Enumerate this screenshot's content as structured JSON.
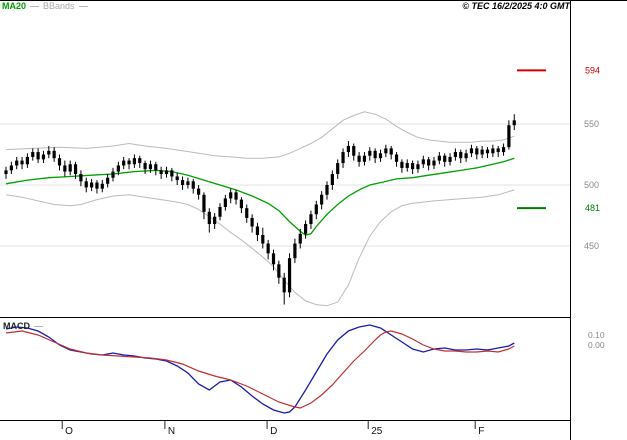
{
  "legend": {
    "ma20": "MA20",
    "bbands": "BBands"
  },
  "header": {
    "copyright": "© TEC 16/2/2025 4:0 GMT"
  },
  "macd_pane": {
    "label": "MACD",
    "axis_labels": [
      {
        "text": "0.10",
        "value": 0.1
      },
      {
        "text": "0.00",
        "value": 0.0
      }
    ]
  },
  "price_axis": {
    "ticks": [
      {
        "label": "550",
        "value": 550
      },
      {
        "label": "500",
        "value": 500
      },
      {
        "label": "450",
        "value": 450
      }
    ],
    "resistance": {
      "label": "594",
      "value": 594
    },
    "support": {
      "label": "481",
      "value": 481
    }
  },
  "x_axis": {
    "labels": [
      {
        "text": "O",
        "index": 10.5
      },
      {
        "text": "N",
        "index": 29.7
      },
      {
        "text": "D",
        "index": 48.8
      },
      {
        "text": "25",
        "index": 67.7
      },
      {
        "text": "F",
        "index": 87.7
      }
    ]
  },
  "colors": {
    "ma20": "#00a000",
    "bbands": "#bbbbbb",
    "candle": "#000000",
    "macd_line": "#1a1aae",
    "signal_line": "#c03030",
    "resistance": "#cc0000",
    "support": "#007d00",
    "grid": "#e3e3e3",
    "axis_text": "#8a8a8a",
    "month_text": "#111111"
  },
  "chart_data": {
    "type": "candlestick",
    "title": "",
    "indicators": [
      "MA20",
      "Bollinger Bands",
      "MACD"
    ],
    "y_axis": {
      "ticks": [
        550,
        500,
        450
      ],
      "ylim": [
        395,
        600
      ],
      "resistance_level": 594,
      "support_level": 481
    },
    "x_axis_months": [
      "O",
      "N",
      "D",
      "25",
      "F"
    ],
    "series": {
      "ohlc": [
        [
          509,
          515,
          505,
          512
        ],
        [
          512,
          519,
          509,
          516
        ],
        [
          516,
          523,
          513,
          520
        ],
        [
          520,
          523,
          513,
          517
        ],
        [
          517,
          526,
          514,
          523
        ],
        [
          523,
          530,
          520,
          527
        ],
        [
          527,
          530,
          518,
          521
        ],
        [
          521,
          528,
          518,
          525
        ],
        [
          525,
          532,
          522,
          528
        ],
        [
          528,
          531,
          519,
          522
        ],
        [
          522,
          525,
          512,
          516
        ],
        [
          516,
          520,
          507,
          511
        ],
        [
          511,
          520,
          508,
          517
        ],
        [
          517,
          519,
          505,
          509
        ],
        [
          509,
          512,
          499,
          503
        ],
        [
          503,
          506,
          494,
          498
        ],
        [
          498,
          505,
          495,
          502
        ],
        [
          502,
          504,
          493,
          497
        ],
        [
          497,
          504,
          494,
          501
        ],
        [
          501,
          509,
          498,
          506
        ],
        [
          506,
          514,
          503,
          511
        ],
        [
          511,
          519,
          508,
          516
        ],
        [
          516,
          523,
          513,
          520
        ],
        [
          520,
          522,
          513,
          517
        ],
        [
          517,
          525,
          514,
          522
        ],
        [
          522,
          524,
          514,
          518
        ],
        [
          518,
          520,
          509,
          513
        ],
        [
          513,
          520,
          510,
          517
        ],
        [
          517,
          519,
          508,
          512
        ],
        [
          512,
          515,
          505,
          509
        ],
        [
          509,
          515,
          506,
          512
        ],
        [
          512,
          514,
          503,
          507
        ],
        [
          507,
          510,
          500,
          504
        ],
        [
          504,
          507,
          496,
          500
        ],
        [
          500,
          506,
          497,
          503
        ],
        [
          503,
          505,
          493,
          497
        ],
        [
          497,
          500,
          488,
          492
        ],
        [
          492,
          494,
          472,
          478
        ],
        [
          478,
          481,
          461,
          468
        ],
        [
          468,
          477,
          464,
          474
        ],
        [
          474,
          485,
          471,
          482
        ],
        [
          482,
          492,
          479,
          489
        ],
        [
          489,
          497,
          485,
          494
        ],
        [
          494,
          496,
          484,
          488
        ],
        [
          488,
          490,
          477,
          481
        ],
        [
          481,
          484,
          469,
          473
        ],
        [
          473,
          476,
          461,
          466
        ],
        [
          466,
          469,
          454,
          459
        ],
        [
          459,
          465,
          448,
          452
        ],
        [
          452,
          455,
          439,
          444
        ],
        [
          444,
          447,
          430,
          435
        ],
        [
          435,
          438,
          419,
          424
        ],
        [
          424,
          428,
          402,
          412
        ],
        [
          412,
          444,
          408,
          440
        ],
        [
          440,
          456,
          436,
          452
        ],
        [
          452,
          464,
          448,
          460
        ],
        [
          460,
          471,
          456,
          468
        ],
        [
          468,
          479,
          464,
          476
        ],
        [
          476,
          487,
          472,
          484
        ],
        [
          484,
          495,
          480,
          492
        ],
        [
          492,
          503,
          488,
          500
        ],
        [
          500,
          512,
          496,
          509
        ],
        [
          509,
          521,
          505,
          518
        ],
        [
          518,
          530,
          514,
          527
        ],
        [
          527,
          536,
          523,
          532
        ],
        [
          532,
          534,
          520,
          524
        ],
        [
          524,
          527,
          515,
          519
        ],
        [
          519,
          527,
          516,
          524
        ],
        [
          524,
          531,
          520,
          528
        ],
        [
          528,
          530,
          518,
          522
        ],
        [
          522,
          529,
          519,
          526
        ],
        [
          526,
          533,
          523,
          530
        ],
        [
          530,
          532,
          521,
          525
        ],
        [
          525,
          527,
          515,
          519
        ],
        [
          519,
          521,
          510,
          514
        ],
        [
          514,
          521,
          511,
          518
        ],
        [
          518,
          520,
          509,
          513
        ],
        [
          513,
          520,
          510,
          517
        ],
        [
          517,
          524,
          514,
          521
        ],
        [
          521,
          523,
          512,
          516
        ],
        [
          516,
          523,
          513,
          520
        ],
        [
          520,
          527,
          517,
          524
        ],
        [
          524,
          526,
          515,
          519
        ],
        [
          519,
          526,
          516,
          523
        ],
        [
          523,
          530,
          520,
          527
        ],
        [
          527,
          529,
          518,
          522
        ],
        [
          522,
          529,
          519,
          526
        ],
        [
          526,
          533,
          523,
          530
        ],
        [
          530,
          532,
          521,
          525
        ],
        [
          525,
          532,
          522,
          529
        ],
        [
          529,
          531,
          522,
          526
        ],
        [
          526,
          533,
          523,
          530
        ],
        [
          530,
          532,
          523,
          527
        ],
        [
          527,
          534,
          524,
          531
        ],
        [
          531,
          553,
          529,
          549
        ],
        [
          549,
          558,
          545,
          553
        ]
      ],
      "ma20": [
        [
          0,
          501
        ],
        [
          4,
          504
        ],
        [
          8,
          506
        ],
        [
          12,
          507
        ],
        [
          16,
          508
        ],
        [
          20,
          509
        ],
        [
          24,
          511
        ],
        [
          28,
          512
        ],
        [
          31,
          511
        ],
        [
          34,
          508
        ],
        [
          37,
          504
        ],
        [
          40,
          500
        ],
        [
          43,
          496
        ],
        [
          46,
          491
        ],
        [
          49,
          485
        ],
        [
          51,
          479
        ],
        [
          53,
          470
        ],
        [
          55,
          462
        ],
        [
          56,
          459
        ],
        [
          57,
          460
        ],
        [
          58,
          466
        ],
        [
          60,
          476
        ],
        [
          62,
          484
        ],
        [
          64,
          491
        ],
        [
          66,
          496
        ],
        [
          68,
          500
        ],
        [
          70,
          502
        ],
        [
          73,
          505
        ],
        [
          76,
          506
        ],
        [
          79,
          508
        ],
        [
          82,
          510
        ],
        [
          85,
          512
        ],
        [
          88,
          514
        ],
        [
          91,
          517
        ],
        [
          93,
          519
        ],
        [
          95,
          522
        ]
      ],
      "bollinger_upper": [
        [
          0,
          529
        ],
        [
          5,
          530
        ],
        [
          10,
          531
        ],
        [
          15,
          530
        ],
        [
          20,
          532
        ],
        [
          23,
          534
        ],
        [
          26,
          532
        ],
        [
          30,
          530
        ],
        [
          33,
          528
        ],
        [
          36,
          526
        ],
        [
          39,
          524
        ],
        [
          42,
          523
        ],
        [
          45,
          522
        ],
        [
          48,
          522
        ],
        [
          51,
          523
        ],
        [
          53,
          526
        ],
        [
          55,
          530
        ],
        [
          57,
          534
        ],
        [
          59,
          539
        ],
        [
          61,
          546
        ],
        [
          63,
          553
        ],
        [
          65,
          557
        ],
        [
          67,
          560
        ],
        [
          69,
          558
        ],
        [
          71,
          554
        ],
        [
          73,
          548
        ],
        [
          75,
          543
        ],
        [
          77,
          539
        ],
        [
          79,
          537
        ],
        [
          81,
          536
        ],
        [
          83,
          535
        ],
        [
          85,
          535
        ],
        [
          87,
          535
        ],
        [
          89,
          536
        ],
        [
          91,
          536
        ],
        [
          93,
          537
        ],
        [
          95,
          540
        ]
      ],
      "bollinger_lower": [
        [
          0,
          492
        ],
        [
          3,
          490
        ],
        [
          6,
          487
        ],
        [
          9,
          484
        ],
        [
          12,
          483
        ],
        [
          14,
          484
        ],
        [
          17,
          488
        ],
        [
          20,
          491
        ],
        [
          23,
          492
        ],
        [
          26,
          490
        ],
        [
          29,
          488
        ],
        [
          32,
          486
        ],
        [
          34,
          484
        ],
        [
          36,
          480
        ],
        [
          38,
          474
        ],
        [
          40,
          468
        ],
        [
          42,
          461
        ],
        [
          44,
          455
        ],
        [
          46,
          448
        ],
        [
          48,
          441
        ],
        [
          50,
          433
        ],
        [
          52,
          422
        ],
        [
          54,
          412
        ],
        [
          56,
          405
        ],
        [
          58,
          402
        ],
        [
          60,
          401
        ],
        [
          62,
          404
        ],
        [
          64,
          418
        ],
        [
          66,
          440
        ],
        [
          68,
          458
        ],
        [
          70,
          470
        ],
        [
          72,
          478
        ],
        [
          74,
          483
        ],
        [
          76,
          485
        ],
        [
          78,
          486
        ],
        [
          80,
          487
        ],
        [
          83,
          488
        ],
        [
          86,
          489
        ],
        [
          89,
          490
        ],
        [
          92,
          492
        ],
        [
          95,
          496
        ]
      ]
    },
    "macd": {
      "axis_ticks": [
        0.1,
        0.0
      ],
      "macd_line": [
        [
          0,
          0.16
        ],
        [
          2,
          0.18
        ],
        [
          4,
          0.17
        ],
        [
          6,
          0.14
        ],
        [
          8,
          0.08
        ],
        [
          10,
          0.0
        ],
        [
          12,
          -0.05
        ],
        [
          14,
          -0.07
        ],
        [
          16,
          -0.09
        ],
        [
          18,
          -0.1
        ],
        [
          20,
          -0.08
        ],
        [
          22,
          -0.1
        ],
        [
          24,
          -0.11
        ],
        [
          26,
          -0.13
        ],
        [
          28,
          -0.14
        ],
        [
          30,
          -0.16
        ],
        [
          32,
          -0.21
        ],
        [
          34,
          -0.28
        ],
        [
          36,
          -0.39
        ],
        [
          38,
          -0.45
        ],
        [
          40,
          -0.37
        ],
        [
          42,
          -0.35
        ],
        [
          44,
          -0.42
        ],
        [
          46,
          -0.51
        ],
        [
          48,
          -0.59
        ],
        [
          50,
          -0.65
        ],
        [
          52,
          -0.68
        ],
        [
          53,
          -0.67
        ],
        [
          54,
          -0.62
        ],
        [
          56,
          -0.45
        ],
        [
          58,
          -0.27
        ],
        [
          60,
          -0.09
        ],
        [
          62,
          0.05
        ],
        [
          64,
          0.14
        ],
        [
          66,
          0.18
        ],
        [
          68,
          0.2
        ],
        [
          70,
          0.17
        ],
        [
          72,
          0.1
        ],
        [
          74,
          0.03
        ],
        [
          76,
          -0.04
        ],
        [
          78,
          -0.07
        ],
        [
          80,
          -0.04
        ],
        [
          82,
          -0.03
        ],
        [
          84,
          -0.05
        ],
        [
          86,
          -0.05
        ],
        [
          88,
          -0.04
        ],
        [
          90,
          -0.05
        ],
        [
          92,
          -0.03
        ],
        [
          94,
          -0.01
        ],
        [
          95,
          0.02
        ]
      ],
      "signal_line": [
        [
          0,
          0.12
        ],
        [
          3,
          0.14
        ],
        [
          6,
          0.1
        ],
        [
          9,
          0.03
        ],
        [
          12,
          -0.04
        ],
        [
          15,
          -0.08
        ],
        [
          18,
          -0.1
        ],
        [
          21,
          -0.11
        ],
        [
          24,
          -0.12
        ],
        [
          27,
          -0.13
        ],
        [
          30,
          -0.15
        ],
        [
          33,
          -0.19
        ],
        [
          36,
          -0.26
        ],
        [
          39,
          -0.31
        ],
        [
          42,
          -0.35
        ],
        [
          45,
          -0.41
        ],
        [
          48,
          -0.49
        ],
        [
          51,
          -0.57
        ],
        [
          54,
          -0.62
        ],
        [
          55,
          -0.63
        ],
        [
          57,
          -0.58
        ],
        [
          59,
          -0.5
        ],
        [
          61,
          -0.4
        ],
        [
          63,
          -0.28
        ],
        [
          65,
          -0.16
        ],
        [
          67,
          -0.06
        ],
        [
          69,
          0.05
        ],
        [
          70,
          0.1
        ],
        [
          71,
          0.13
        ],
        [
          72,
          0.14
        ],
        [
          74,
          0.11
        ],
        [
          76,
          0.06
        ],
        [
          78,
          0.0
        ],
        [
          80,
          -0.04
        ],
        [
          82,
          -0.06
        ],
        [
          84,
          -0.06
        ],
        [
          86,
          -0.07
        ],
        [
          88,
          -0.07
        ],
        [
          90,
          -0.06
        ],
        [
          92,
          -0.07
        ],
        [
          94,
          -0.04
        ],
        [
          95,
          -0.01
        ]
      ]
    }
  }
}
